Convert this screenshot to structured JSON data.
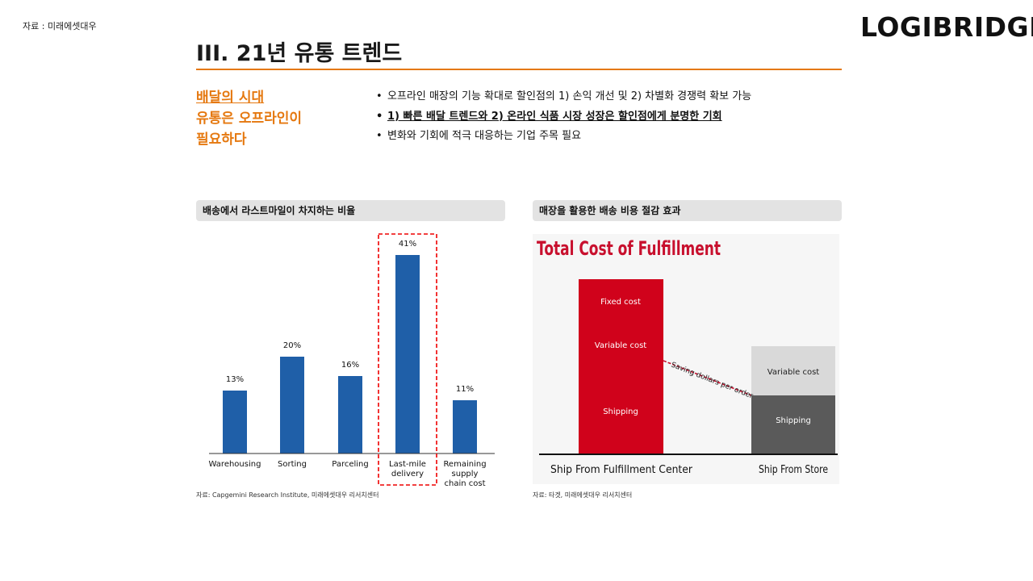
{
  "header": {
    "source_note": "자료 : 미래에셋대우",
    "logo": "LOGIBRIDGE",
    "title": "III. 21년 유통 트렌드"
  },
  "subheading": {
    "line1": "배달의 시대",
    "line2": "유통은 오프라인이",
    "line3": "필요하다"
  },
  "bullets": [
    "오프라인 매장의 기능 확대로 할인점의 1) 손익 개선 및 2) 차별화 경쟁력 확보 가능",
    "1) 빠른 배달 트렌드와 2) 온라인 식품 시장 성장은 할인점에게 분명한 기회",
    "변화와 기회에 적극 대응하는 기업 주목 필요"
  ],
  "left_panel": {
    "heading": "배송에서 라스트마일이 차지하는 비율",
    "source": "자료: Capgemini Research Institute, 미래에셋대우 리서치센터"
  },
  "right_panel": {
    "heading": "매장을 활용한 배송 비용 절감 효과",
    "source": "자료: 타겟, 미래에셋대우 리서치센터"
  },
  "colors": {
    "accent": "#e5780f",
    "bar_blue": "#1f5fa8",
    "red": "#d0021b",
    "gray_light": "#d9d9d9",
    "gray_dark": "#5a5a5a"
  },
  "chart_data": [
    {
      "type": "bar",
      "categories": [
        [
          "Warehousing"
        ],
        [
          "Sorting"
        ],
        [
          "Parceling"
        ],
        [
          "Last-mile",
          "delivery"
        ],
        [
          "Remaining",
          "supply",
          "chain cost"
        ]
      ],
      "values": [
        13,
        20,
        16,
        41,
        11
      ],
      "value_labels": [
        "13%",
        "20%",
        "16%",
        "41%",
        "11%"
      ],
      "ylim": [
        0,
        45
      ],
      "highlight_index": 3,
      "grid": false
    },
    {
      "type": "bar",
      "title": "Total Cost of Fulfillment",
      "categories": [
        "Ship From Fulfillment Center",
        "Ship From Store"
      ],
      "stacked": true,
      "segments": [
        {
          "category": "Ship From Fulfillment Center",
          "labels": [
            "Fixed cost",
            "Variable cost",
            "Shipping"
          ]
        },
        {
          "category": "Ship From Store",
          "labels": [
            "Variable cost",
            "Shipping"
          ]
        }
      ],
      "annotation": "Saving dollars per order"
    }
  ]
}
